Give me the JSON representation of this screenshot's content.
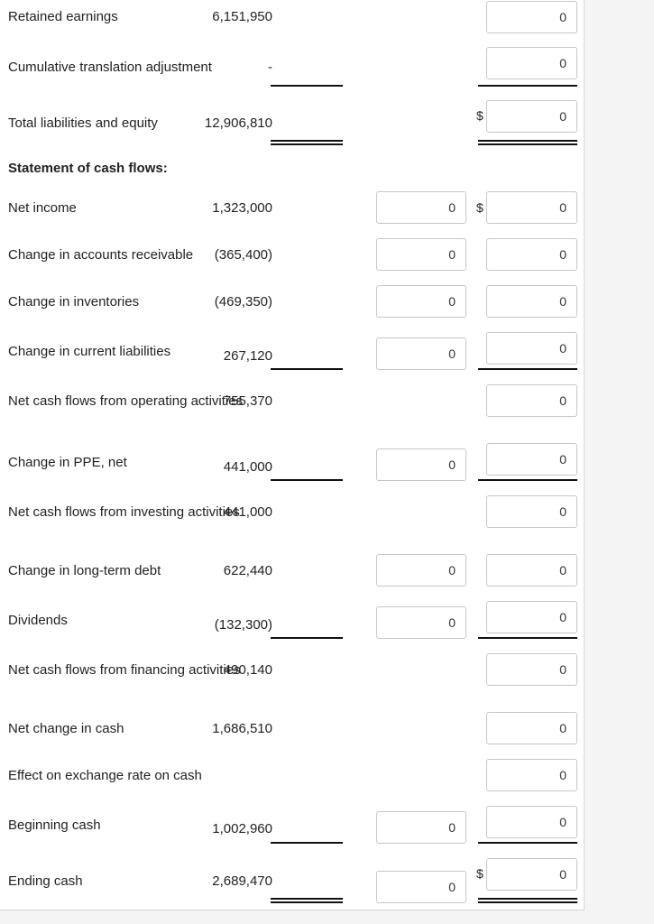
{
  "rows": {
    "retained": {
      "label": "Retained earnings",
      "value": "6,151,950",
      "b": "0"
    },
    "cta": {
      "label": "Cumulative translation adjustment",
      "value": "-",
      "b": "0"
    },
    "total_le": {
      "label": "Total liabilities and equity",
      "value": "12,906,810",
      "b": "0"
    },
    "stmt_heading": {
      "label": "Statement of cash flows:"
    },
    "net_income": {
      "label": "Net income",
      "value": "1,323,000",
      "a": "0",
      "b": "0"
    },
    "chg_ar": {
      "label": "Change in accounts receivable",
      "value": "(365,400)",
      "a": "0",
      "b": "0"
    },
    "chg_inv": {
      "label": "Change in inventories",
      "value": "(469,350)",
      "a": "0",
      "b": "0"
    },
    "chg_cl": {
      "label": "Change in current liabilities",
      "value": "267,120",
      "a": "0",
      "b": "0"
    },
    "net_op": {
      "label": "Net cash flows from operating activities",
      "value": "755,370",
      "b": "0"
    },
    "chg_ppe": {
      "label": "Change in PPE, net",
      "value": "441,000",
      "a": "0",
      "b": "0"
    },
    "net_inv": {
      "label": "Net cash flows from investing activities",
      "value": "441,000",
      "b": "0"
    },
    "chg_ltd": {
      "label": "Change in long-term debt",
      "value": "622,440",
      "a": "0",
      "b": "0"
    },
    "dividends": {
      "label": "Dividends",
      "value": "(132,300)",
      "a": "0",
      "b": "0"
    },
    "net_fin": {
      "label": "Net cash flows from financing activities",
      "value": "490,140",
      "b": "0"
    },
    "net_change": {
      "label": "Net change in cash",
      "value": "1,686,510",
      "b": "0"
    },
    "fx_effect": {
      "label": "Effect on exchange rate on cash",
      "b": "0"
    },
    "beginning": {
      "label": "Beginning cash",
      "value": "1,002,960",
      "a": "0",
      "b": "0"
    },
    "ending": {
      "label": "Ending cash",
      "value": "2,689,470",
      "a": "0",
      "b": "0"
    }
  },
  "currency_symbol": "$"
}
